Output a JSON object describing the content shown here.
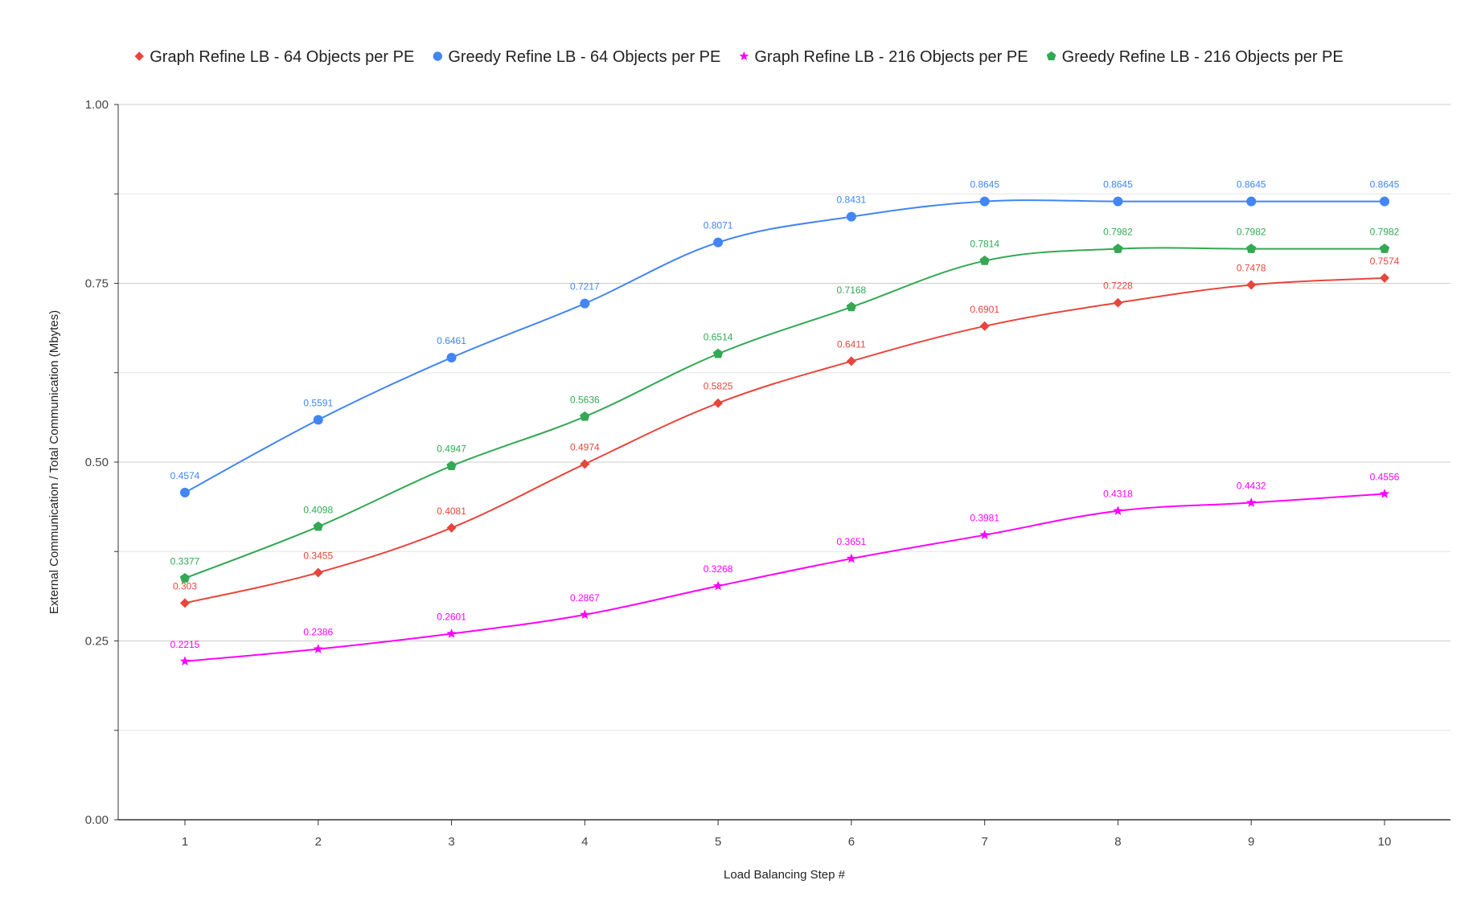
{
  "chart_data": {
    "type": "line",
    "title": "",
    "xlabel": "Load Balancing Step #",
    "ylabel": "External Communication / Total Communication (Mbytes)",
    "categories": [
      "1",
      "2",
      "3",
      "4",
      "5",
      "6",
      "7",
      "8",
      "9",
      "10"
    ],
    "ylim": [
      0,
      1
    ],
    "yticks": [
      "0.00",
      "0.25",
      "0.50",
      "0.75",
      "1.00"
    ],
    "y_tick_values": [
      0,
      0.25,
      0.5,
      0.75,
      1.0
    ],
    "grid": true,
    "legend_position": "top",
    "series": [
      {
        "name": "Graph Refine LB - 64 Objects per PE",
        "color": "#e8453c",
        "marker": "diamond",
        "values": [
          0.303,
          0.3455,
          0.4081,
          0.4974,
          0.5825,
          0.6411,
          0.6901,
          0.7228,
          0.7478,
          0.7574
        ],
        "labels": [
          "0.303",
          "0.3455",
          "0.4081",
          "0.4974",
          "0.5825",
          "0.6411",
          "0.6901",
          "0.7228",
          "0.7478",
          "0.7574"
        ]
      },
      {
        "name": "Greedy Refine LB - 64 Objects per PE",
        "color": "#4285f4",
        "marker": "circle",
        "values": [
          0.4574,
          0.5591,
          0.6461,
          0.7217,
          0.8071,
          0.8431,
          0.8645,
          0.8645,
          0.8645,
          0.8645
        ],
        "labels": [
          "0.4574",
          "0.5591",
          "0.6461",
          "0.7217",
          "0.8071",
          "0.8431",
          "0.8645",
          "0.8645",
          "0.8645",
          "0.8645"
        ]
      },
      {
        "name": "Graph Refine LB - 216 Objects per PE",
        "color": "#ff00ff",
        "marker": "star",
        "values": [
          0.2215,
          0.2386,
          0.2601,
          0.2867,
          0.3268,
          0.3651,
          0.3981,
          0.4318,
          0.4432,
          0.4556
        ],
        "labels": [
          "0.2215",
          "0.2386",
          "0.2601",
          "0.2867",
          "0.3268",
          "0.3651",
          "0.3981",
          "0.4318",
          "0.4432",
          "0.4556"
        ]
      },
      {
        "name": "Greedy Refine LB - 216 Objects per PE",
        "color": "#34a853",
        "marker": "pentagon",
        "values": [
          0.3377,
          0.4098,
          0.4947,
          0.5636,
          0.6514,
          0.7168,
          0.7814,
          0.7982,
          0.7982,
          0.7982
        ],
        "labels": [
          "0.3377",
          "0.4098",
          "0.4947",
          "0.5636",
          "0.6514",
          "0.7168",
          "0.7814",
          "0.7982",
          "0.7982",
          "0.7982"
        ]
      }
    ]
  }
}
